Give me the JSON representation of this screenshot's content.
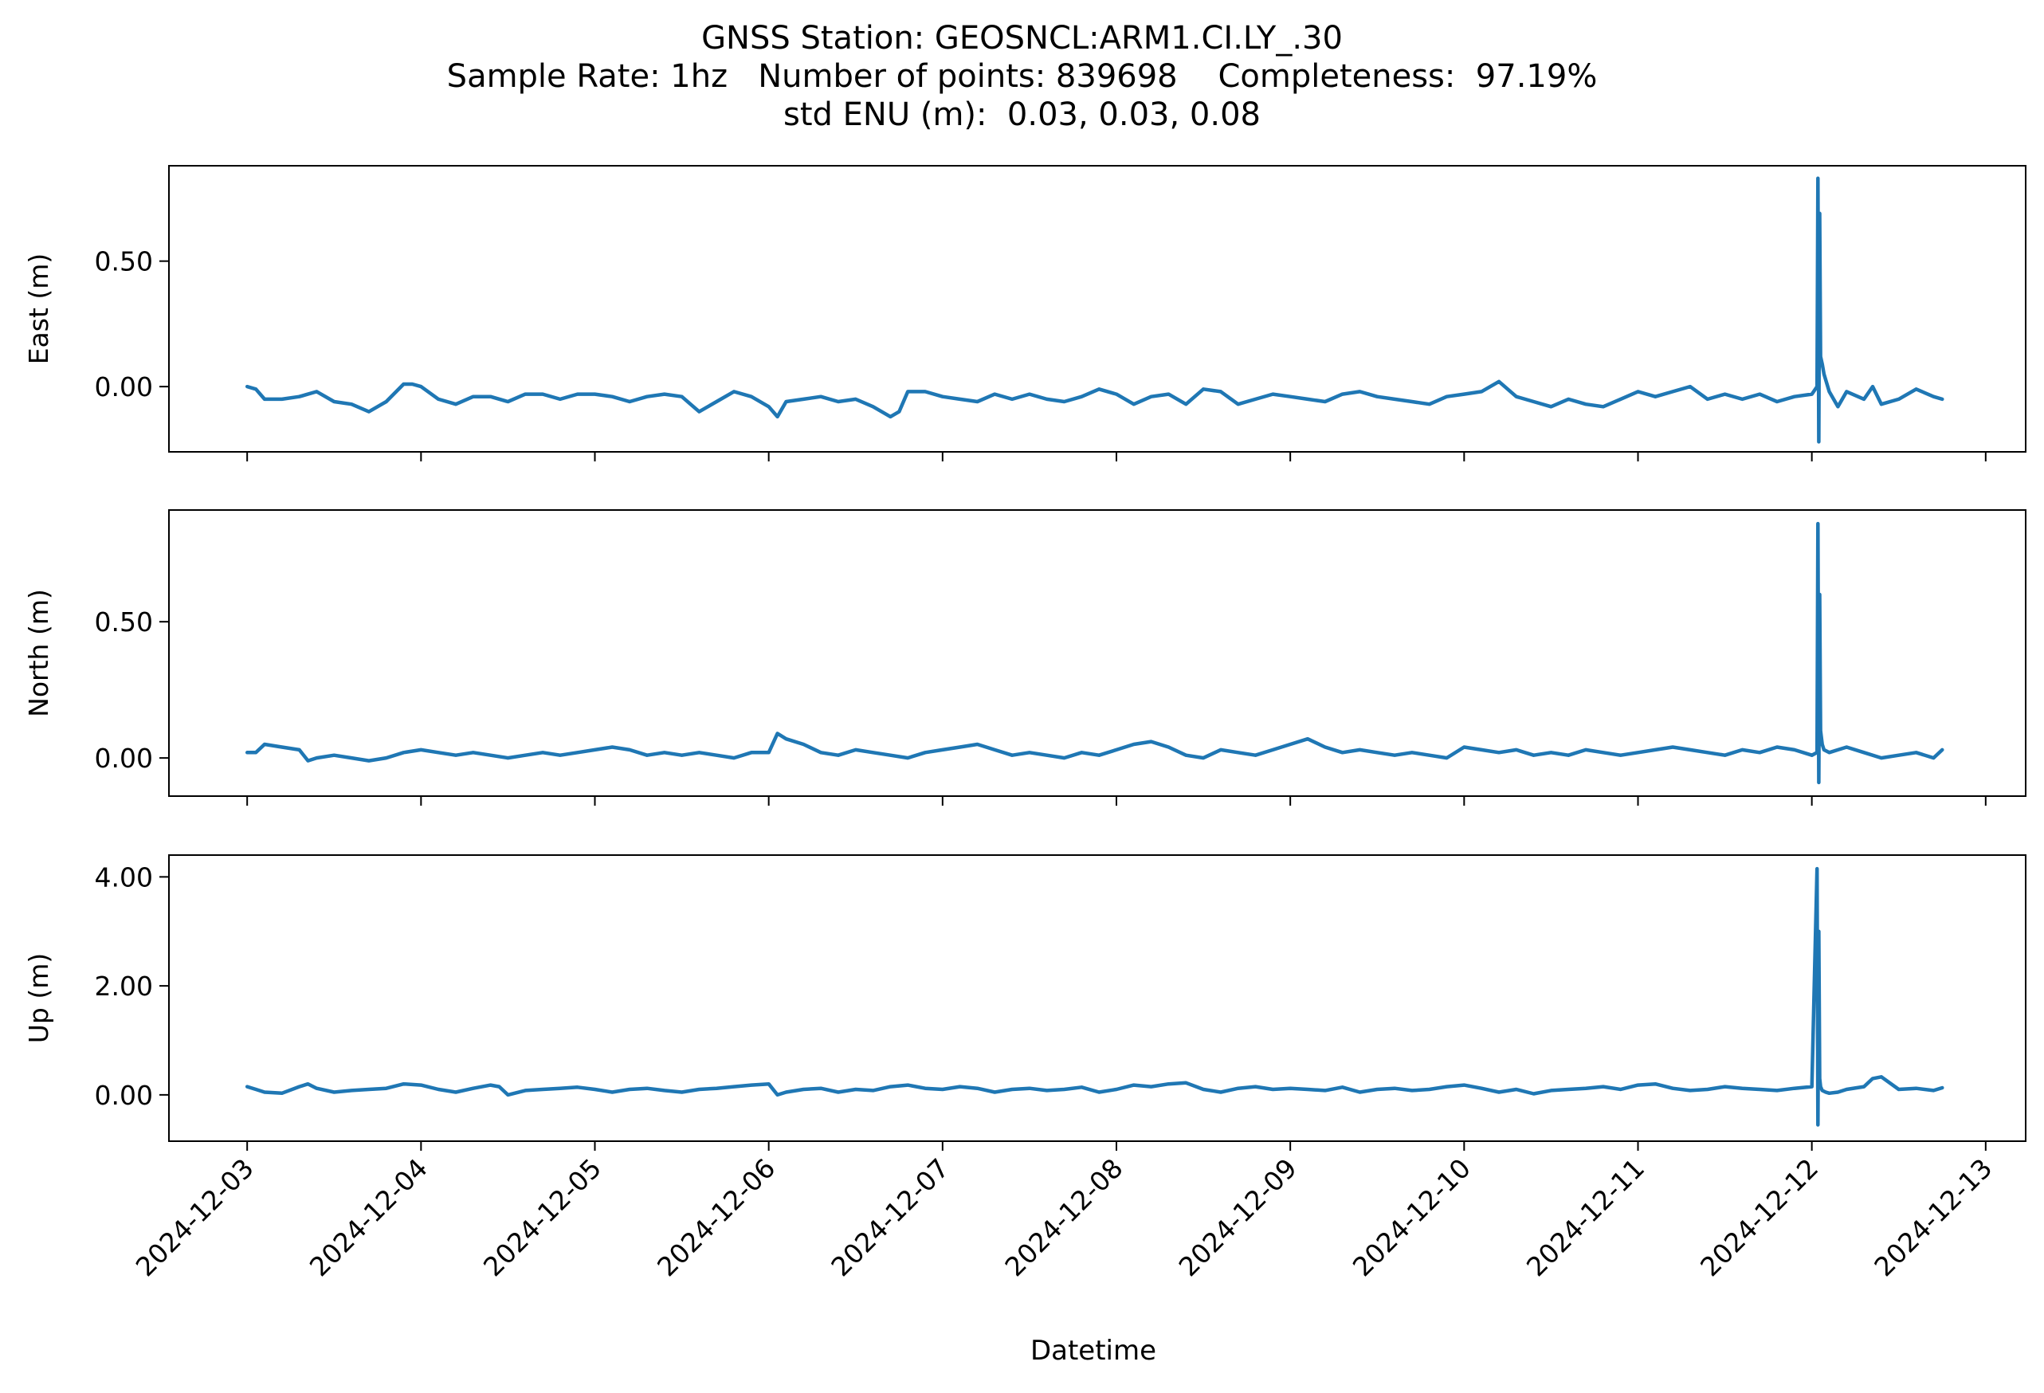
{
  "title": {
    "line1": "GNSS Station: GEOSNCL:ARM1.CI.LY_.30",
    "line2": "Sample Rate: 1hz   Number of points: 839698    Completeness:  97.19%",
    "line3": "std ENU (m):  0.03, 0.03, 0.08"
  },
  "colors": {
    "series": "#1f77b4",
    "axes": "#000000"
  },
  "chart_data": {
    "type": "line",
    "xlabel": "Datetime",
    "x_ticks": [
      "2024-12-03",
      "2024-12-04",
      "2024-12-05",
      "2024-12-06",
      "2024-12-07",
      "2024-12-08",
      "2024-12-09",
      "2024-12-10",
      "2024-12-11",
      "2024-12-12",
      "2024-12-13"
    ],
    "x_range_days": [
      2.55,
      13.23
    ],
    "grid": false,
    "panels": [
      {
        "ylabel": "East (m)",
        "ylim": [
          -0.26,
          0.88
        ],
        "yticks": [
          "0.50",
          "0.00"
        ],
        "yticks_values": [
          0.5,
          0.0
        ],
        "x_days": [
          3.0,
          3.05,
          3.1,
          3.2,
          3.3,
          3.4,
          3.5,
          3.6,
          3.7,
          3.8,
          3.9,
          3.95,
          4.0,
          4.1,
          4.2,
          4.3,
          4.4,
          4.5,
          4.6,
          4.7,
          4.8,
          4.9,
          5.0,
          5.1,
          5.2,
          5.3,
          5.4,
          5.5,
          5.6,
          5.7,
          5.8,
          5.9,
          6.0,
          6.05,
          6.1,
          6.2,
          6.3,
          6.4,
          6.5,
          6.6,
          6.7,
          6.75,
          6.8,
          6.9,
          7.0,
          7.1,
          7.2,
          7.3,
          7.4,
          7.5,
          7.6,
          7.7,
          7.8,
          7.9,
          8.0,
          8.1,
          8.2,
          8.3,
          8.4,
          8.5,
          8.6,
          8.7,
          8.8,
          8.9,
          9.0,
          9.1,
          9.2,
          9.3,
          9.4,
          9.5,
          9.6,
          9.7,
          9.8,
          9.9,
          10.0,
          10.1,
          10.2,
          10.3,
          10.4,
          10.5,
          10.6,
          10.7,
          10.8,
          10.9,
          11.0,
          11.1,
          11.2,
          11.3,
          11.4,
          11.5,
          11.6,
          11.7,
          11.8,
          11.9,
          12.0,
          12.03,
          12.035,
          12.04,
          12.045,
          12.05,
          12.06,
          12.07,
          12.1,
          12.15,
          12.2,
          12.3,
          12.35,
          12.4,
          12.5,
          12.6,
          12.7,
          12.75
        ],
        "y": [
          0.0,
          -0.01,
          -0.05,
          -0.05,
          -0.04,
          -0.02,
          -0.06,
          -0.07,
          -0.1,
          -0.06,
          0.01,
          0.01,
          0.0,
          -0.05,
          -0.07,
          -0.04,
          -0.04,
          -0.06,
          -0.03,
          -0.03,
          -0.05,
          -0.03,
          -0.03,
          -0.04,
          -0.06,
          -0.04,
          -0.03,
          -0.04,
          -0.1,
          -0.06,
          -0.02,
          -0.04,
          -0.08,
          -0.12,
          -0.06,
          -0.05,
          -0.04,
          -0.06,
          -0.05,
          -0.08,
          -0.12,
          -0.1,
          -0.02,
          -0.02,
          -0.04,
          -0.05,
          -0.06,
          -0.03,
          -0.05,
          -0.03,
          -0.05,
          -0.06,
          -0.04,
          -0.01,
          -0.03,
          -0.07,
          -0.04,
          -0.03,
          -0.07,
          -0.01,
          -0.02,
          -0.07,
          -0.05,
          -0.03,
          -0.04,
          -0.05,
          -0.06,
          -0.03,
          -0.02,
          -0.04,
          -0.05,
          -0.06,
          -0.07,
          -0.04,
          -0.03,
          -0.02,
          0.02,
          -0.04,
          -0.06,
          -0.08,
          -0.05,
          -0.07,
          -0.08,
          -0.05,
          -0.02,
          -0.04,
          -0.02,
          0.0,
          -0.05,
          -0.03,
          -0.05,
          -0.03,
          -0.06,
          -0.04,
          -0.03,
          0.0,
          0.83,
          -0.22,
          0.69,
          0.12,
          0.09,
          0.05,
          -0.02,
          -0.08,
          -0.02,
          -0.05,
          0.0,
          -0.07,
          -0.05,
          -0.01,
          -0.04,
          -0.05
        ]
      },
      {
        "ylabel": "North (m)",
        "ylim": [
          -0.14,
          0.91
        ],
        "yticks": [
          "0.50",
          "0.00"
        ],
        "yticks_values": [
          0.5,
          0.0
        ],
        "x_days": [
          3.0,
          3.05,
          3.1,
          3.2,
          3.3,
          3.35,
          3.4,
          3.5,
          3.6,
          3.7,
          3.8,
          3.9,
          4.0,
          4.1,
          4.2,
          4.3,
          4.4,
          4.5,
          4.6,
          4.7,
          4.8,
          4.9,
          5.0,
          5.1,
          5.2,
          5.3,
          5.4,
          5.5,
          5.6,
          5.7,
          5.8,
          5.9,
          6.0,
          6.05,
          6.1,
          6.2,
          6.3,
          6.4,
          6.5,
          6.6,
          6.7,
          6.8,
          6.9,
          7.0,
          7.1,
          7.2,
          7.3,
          7.4,
          7.5,
          7.6,
          7.7,
          7.8,
          7.9,
          8.0,
          8.1,
          8.2,
          8.3,
          8.4,
          8.5,
          8.6,
          8.7,
          8.8,
          8.9,
          9.0,
          9.1,
          9.2,
          9.3,
          9.4,
          9.5,
          9.6,
          9.7,
          9.8,
          9.9,
          10.0,
          10.1,
          10.2,
          10.3,
          10.4,
          10.5,
          10.6,
          10.7,
          10.8,
          10.9,
          11.0,
          11.1,
          11.2,
          11.3,
          11.4,
          11.5,
          11.6,
          11.7,
          11.8,
          11.9,
          12.0,
          12.03,
          12.035,
          12.04,
          12.045,
          12.05,
          12.06,
          12.07,
          12.1,
          12.15,
          12.2,
          12.3,
          12.4,
          12.5,
          12.6,
          12.7,
          12.75
        ],
        "y": [
          0.02,
          0.02,
          0.05,
          0.04,
          0.03,
          -0.01,
          0.0,
          0.01,
          0.0,
          -0.01,
          0.0,
          0.02,
          0.03,
          0.02,
          0.01,
          0.02,
          0.01,
          0.0,
          0.01,
          0.02,
          0.01,
          0.02,
          0.03,
          0.04,
          0.03,
          0.01,
          0.02,
          0.01,
          0.02,
          0.01,
          0.0,
          0.02,
          0.02,
          0.09,
          0.07,
          0.05,
          0.02,
          0.01,
          0.03,
          0.02,
          0.01,
          0.0,
          0.02,
          0.03,
          0.04,
          0.05,
          0.03,
          0.01,
          0.02,
          0.01,
          0.0,
          0.02,
          0.01,
          0.03,
          0.05,
          0.06,
          0.04,
          0.01,
          0.0,
          0.03,
          0.02,
          0.01,
          0.03,
          0.05,
          0.07,
          0.04,
          0.02,
          0.03,
          0.02,
          0.01,
          0.02,
          0.01,
          0.0,
          0.04,
          0.03,
          0.02,
          0.03,
          0.01,
          0.02,
          0.01,
          0.03,
          0.02,
          0.01,
          0.02,
          0.03,
          0.04,
          0.03,
          0.02,
          0.01,
          0.03,
          0.02,
          0.04,
          0.03,
          0.01,
          0.02,
          0.86,
          -0.09,
          0.6,
          0.1,
          0.05,
          0.03,
          0.02,
          0.03,
          0.04,
          0.02,
          0.0,
          0.01,
          0.02,
          0.0,
          0.03
        ]
      },
      {
        "ylabel": "Up (m)",
        "ylim": [
          -0.85,
          4.4
        ],
        "yticks": [
          "4.00",
          "2.00",
          "0.00"
        ],
        "yticks_values": [
          4.0,
          2.0,
          0.0
        ],
        "x_days": [
          3.0,
          3.05,
          3.1,
          3.2,
          3.3,
          3.35,
          3.4,
          3.5,
          3.6,
          3.7,
          3.8,
          3.9,
          4.0,
          4.1,
          4.2,
          4.3,
          4.4,
          4.45,
          4.5,
          4.6,
          4.7,
          4.8,
          4.9,
          5.0,
          5.1,
          5.2,
          5.3,
          5.4,
          5.5,
          5.6,
          5.7,
          5.8,
          5.9,
          6.0,
          6.05,
          6.1,
          6.2,
          6.3,
          6.4,
          6.5,
          6.6,
          6.7,
          6.8,
          6.9,
          7.0,
          7.1,
          7.2,
          7.3,
          7.4,
          7.5,
          7.6,
          7.7,
          7.8,
          7.9,
          8.0,
          8.1,
          8.2,
          8.3,
          8.4,
          8.5,
          8.6,
          8.7,
          8.8,
          8.9,
          9.0,
          9.1,
          9.2,
          9.3,
          9.4,
          9.5,
          9.6,
          9.7,
          9.8,
          9.9,
          10.0,
          10.1,
          10.2,
          10.3,
          10.4,
          10.5,
          10.6,
          10.7,
          10.8,
          10.9,
          11.0,
          11.1,
          11.2,
          11.3,
          11.4,
          11.5,
          11.6,
          11.7,
          11.8,
          11.9,
          12.0,
          12.03,
          12.035,
          12.04,
          12.045,
          12.05,
          12.06,
          12.08,
          12.1,
          12.15,
          12.2,
          12.3,
          12.35,
          12.4,
          12.5,
          12.6,
          12.7,
          12.75
        ],
        "y": [
          0.15,
          0.1,
          0.05,
          0.03,
          0.15,
          0.2,
          0.12,
          0.05,
          0.08,
          0.1,
          0.12,
          0.2,
          0.18,
          0.1,
          0.05,
          0.12,
          0.18,
          0.15,
          0.0,
          0.08,
          0.1,
          0.12,
          0.14,
          0.1,
          0.05,
          0.1,
          0.12,
          0.08,
          0.05,
          0.1,
          0.12,
          0.15,
          0.18,
          0.2,
          0.0,
          0.05,
          0.1,
          0.12,
          0.05,
          0.1,
          0.08,
          0.15,
          0.18,
          0.12,
          0.1,
          0.15,
          0.12,
          0.05,
          0.1,
          0.12,
          0.08,
          0.1,
          0.14,
          0.05,
          0.1,
          0.18,
          0.15,
          0.2,
          0.22,
          0.1,
          0.05,
          0.12,
          0.15,
          0.1,
          0.12,
          0.1,
          0.08,
          0.14,
          0.05,
          0.1,
          0.12,
          0.08,
          0.1,
          0.15,
          0.18,
          0.12,
          0.05,
          0.1,
          0.02,
          0.08,
          0.1,
          0.12,
          0.15,
          0.1,
          0.18,
          0.2,
          0.12,
          0.08,
          0.1,
          0.15,
          0.12,
          0.1,
          0.08,
          0.12,
          0.15,
          4.15,
          -0.55,
          3.0,
          0.3,
          0.15,
          0.08,
          0.05,
          0.03,
          0.05,
          0.1,
          0.15,
          0.3,
          0.33,
          0.1,
          0.12,
          0.08,
          0.13
        ]
      }
    ]
  }
}
